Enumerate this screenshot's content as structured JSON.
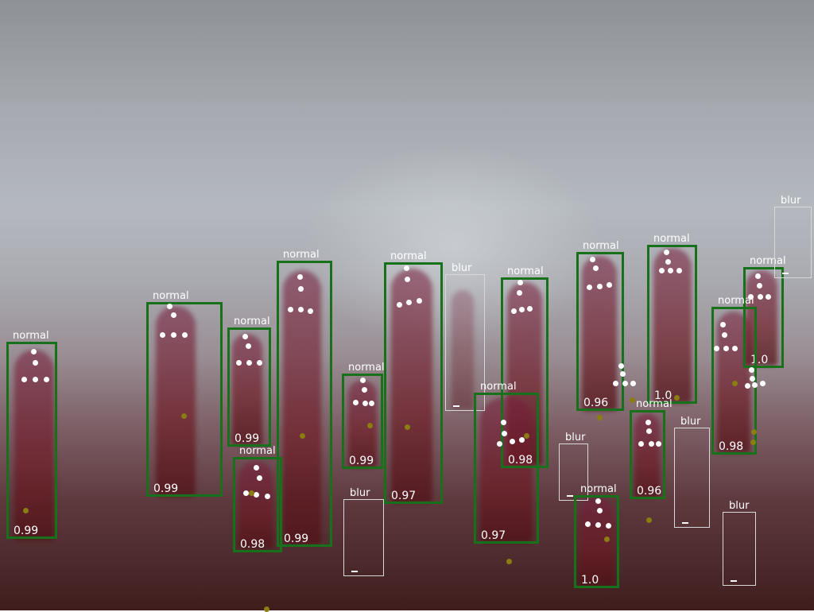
{
  "detections": [
    {
      "label": "normal",
      "score": "0.99"
    },
    {
      "label": "normal",
      "score": "0.99"
    },
    {
      "label": "normal",
      "score": "0.99"
    },
    {
      "label": "normal",
      "score": "0.99"
    },
    {
      "label": "normal",
      "score": "0.98"
    },
    {
      "label": "normal",
      "score": "0.99"
    },
    {
      "label": "normal",
      "score": "0.97"
    },
    {
      "label": "blur",
      "score": ""
    },
    {
      "label": "blur",
      "score": ""
    },
    {
      "label": "normal",
      "score": "0.98"
    },
    {
      "label": "normal",
      "score": "0.97"
    },
    {
      "label": "blur",
      "score": ""
    },
    {
      "label": "normal",
      "score": "0.96"
    },
    {
      "label": "normal",
      "score": "1.0"
    },
    {
      "label": "normal",
      "score": "0.96"
    },
    {
      "label": "normal",
      "score": "1.0"
    },
    {
      "label": "blur",
      "score": ""
    },
    {
      "label": "normal",
      "score": "0.98"
    },
    {
      "label": "normal",
      "score": "1.0"
    },
    {
      "label": "blur",
      "score": ""
    },
    {
      "label": "blur",
      "score": ""
    }
  ],
  "colors": {
    "normal": "#17701a",
    "blur": "#d8d8d8",
    "keypoint": "#ffffff",
    "outlier": "#8a7d12"
  }
}
